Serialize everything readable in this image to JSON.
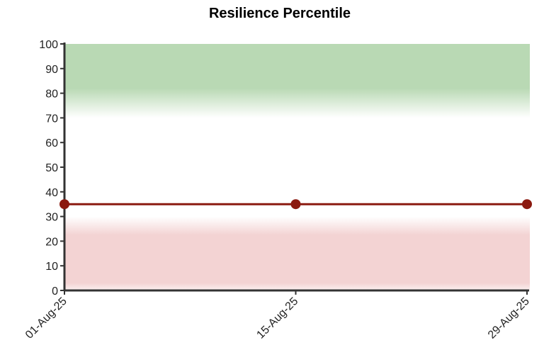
{
  "chart_data": {
    "type": "line",
    "title": "Resilience Percentile",
    "x": [
      "01-Aug-25",
      "15-Aug-25",
      "29-Aug-25"
    ],
    "values": [
      35,
      35,
      35
    ],
    "color": "#8b1a10",
    "ylim": [
      0,
      100
    ],
    "yticks": [
      0,
      10,
      20,
      30,
      40,
      50,
      60,
      70,
      80,
      90,
      100
    ],
    "bands": [
      {
        "from": 70,
        "to": 100,
        "color": "#b9d9b4"
      },
      {
        "from": 0,
        "to": 30,
        "color": "#f3d3d3"
      }
    ]
  }
}
